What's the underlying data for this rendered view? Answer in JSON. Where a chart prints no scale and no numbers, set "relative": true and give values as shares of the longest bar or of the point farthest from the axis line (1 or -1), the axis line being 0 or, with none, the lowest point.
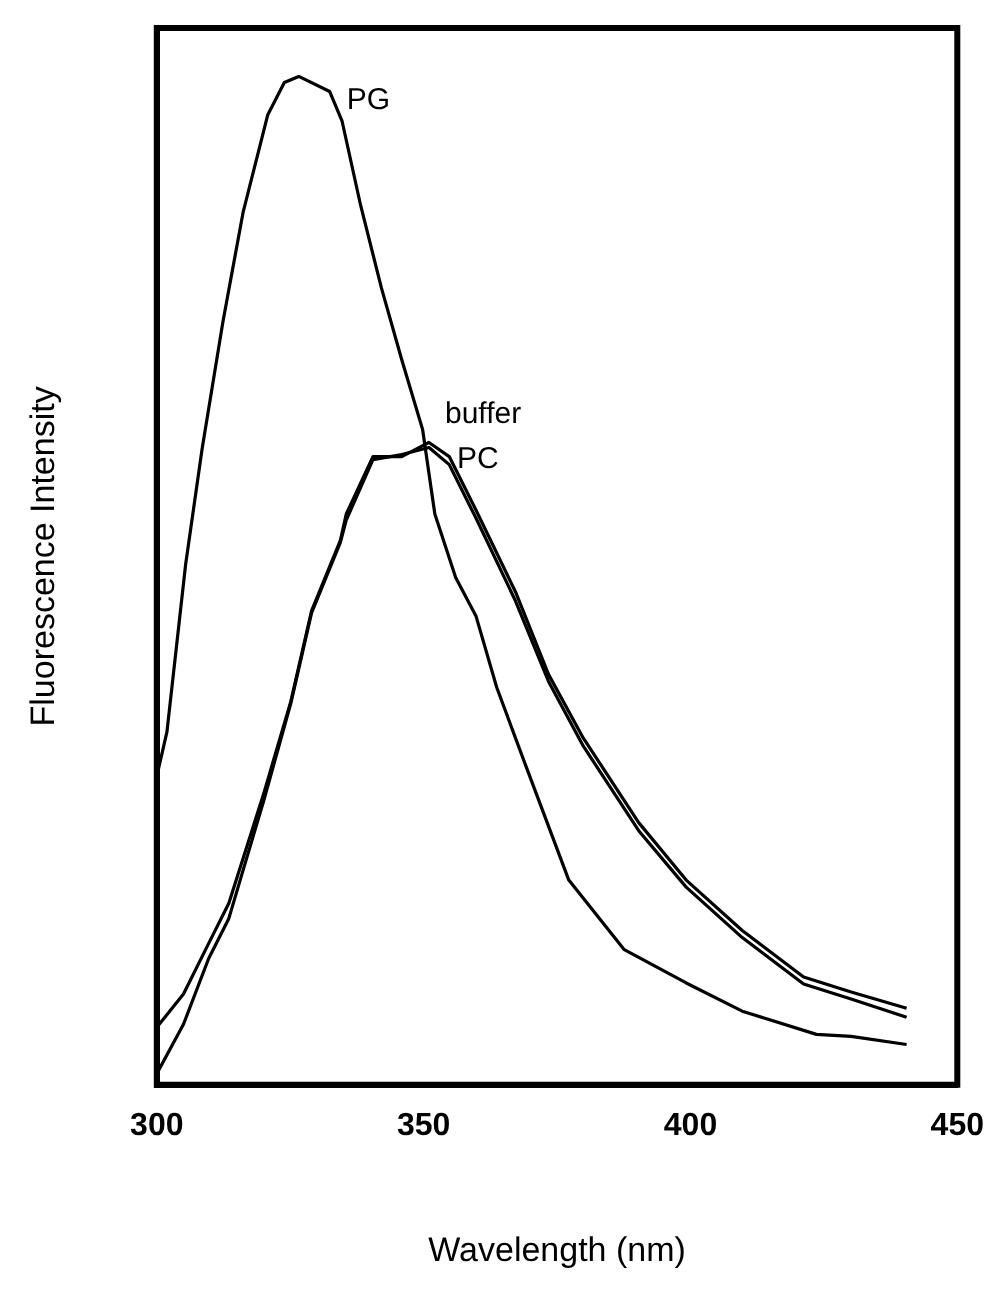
{
  "chart_data": {
    "type": "line",
    "xlabel": "Wavelength (nm)",
    "ylabel": "Fluorescence Intensity",
    "relative": true,
    "xlim": [
      300,
      450
    ],
    "xticks": [
      300,
      350,
      400,
      450
    ],
    "grid": false,
    "series": [
      {
        "name": "PG",
        "color": "#000000",
        "x": [
          300,
          301.9,
          305.4,
          308.5,
          312.4,
          316.2,
          320.8,
          323.9,
          326.6,
          332.4,
          334.7,
          338.2,
          342.1,
          345.9,
          349.8,
          352.1,
          356.0,
          359.8,
          363.7,
          369.1,
          377.2,
          387.6,
          399.2,
          409.7,
          423.6,
          430.1,
          440.5
        ],
        "values": [
          0.306,
          0.35,
          0.516,
          0.631,
          0.757,
          0.866,
          0.962,
          0.994,
          1.0,
          0.985,
          0.956,
          0.872,
          0.79,
          0.719,
          0.65,
          0.566,
          0.503,
          0.465,
          0.394,
          0.317,
          0.203,
          0.134,
          0.101,
          0.073,
          0.05,
          0.048,
          0.04
        ]
      },
      {
        "name": "buffer",
        "color": "#000000",
        "x": [
          300,
          305,
          309.7,
          313.5,
          320.1,
          325.1,
          329.0,
          334.4,
          335.5,
          340.5,
          345.9,
          351.0,
          354.8,
          359.8,
          367.2,
          373.4,
          379.9,
          390.3,
          399.2,
          409.7,
          421.2,
          430.1,
          440.5
        ],
        "values": [
          0.057,
          0.09,
          0.14,
          0.18,
          0.29,
          0.38,
          0.47,
          0.54,
          0.566,
          0.623,
          0.623,
          0.637,
          0.623,
          0.57,
          0.489,
          0.407,
          0.344,
          0.26,
          0.203,
          0.153,
          0.107,
          0.092,
          0.076
        ]
      },
      {
        "name": "PC",
        "color": "#000000",
        "x": [
          300,
          305,
          309.7,
          313.5,
          320.1,
          325.1,
          329.0,
          334.4,
          335.5,
          340.5,
          345.9,
          351.0,
          354.8,
          359.8,
          367.2,
          373.4,
          379.9,
          390.3,
          399.2,
          409.7,
          421.2,
          430.1,
          440.5
        ],
        "values": [
          0.011,
          0.06,
          0.125,
          0.165,
          0.283,
          0.378,
          0.468,
          0.538,
          0.56,
          0.62,
          0.625,
          0.632,
          0.615,
          0.562,
          0.48,
          0.4,
          0.336,
          0.252,
          0.196,
          0.146,
          0.1,
          0.085,
          0.067
        ]
      }
    ]
  }
}
